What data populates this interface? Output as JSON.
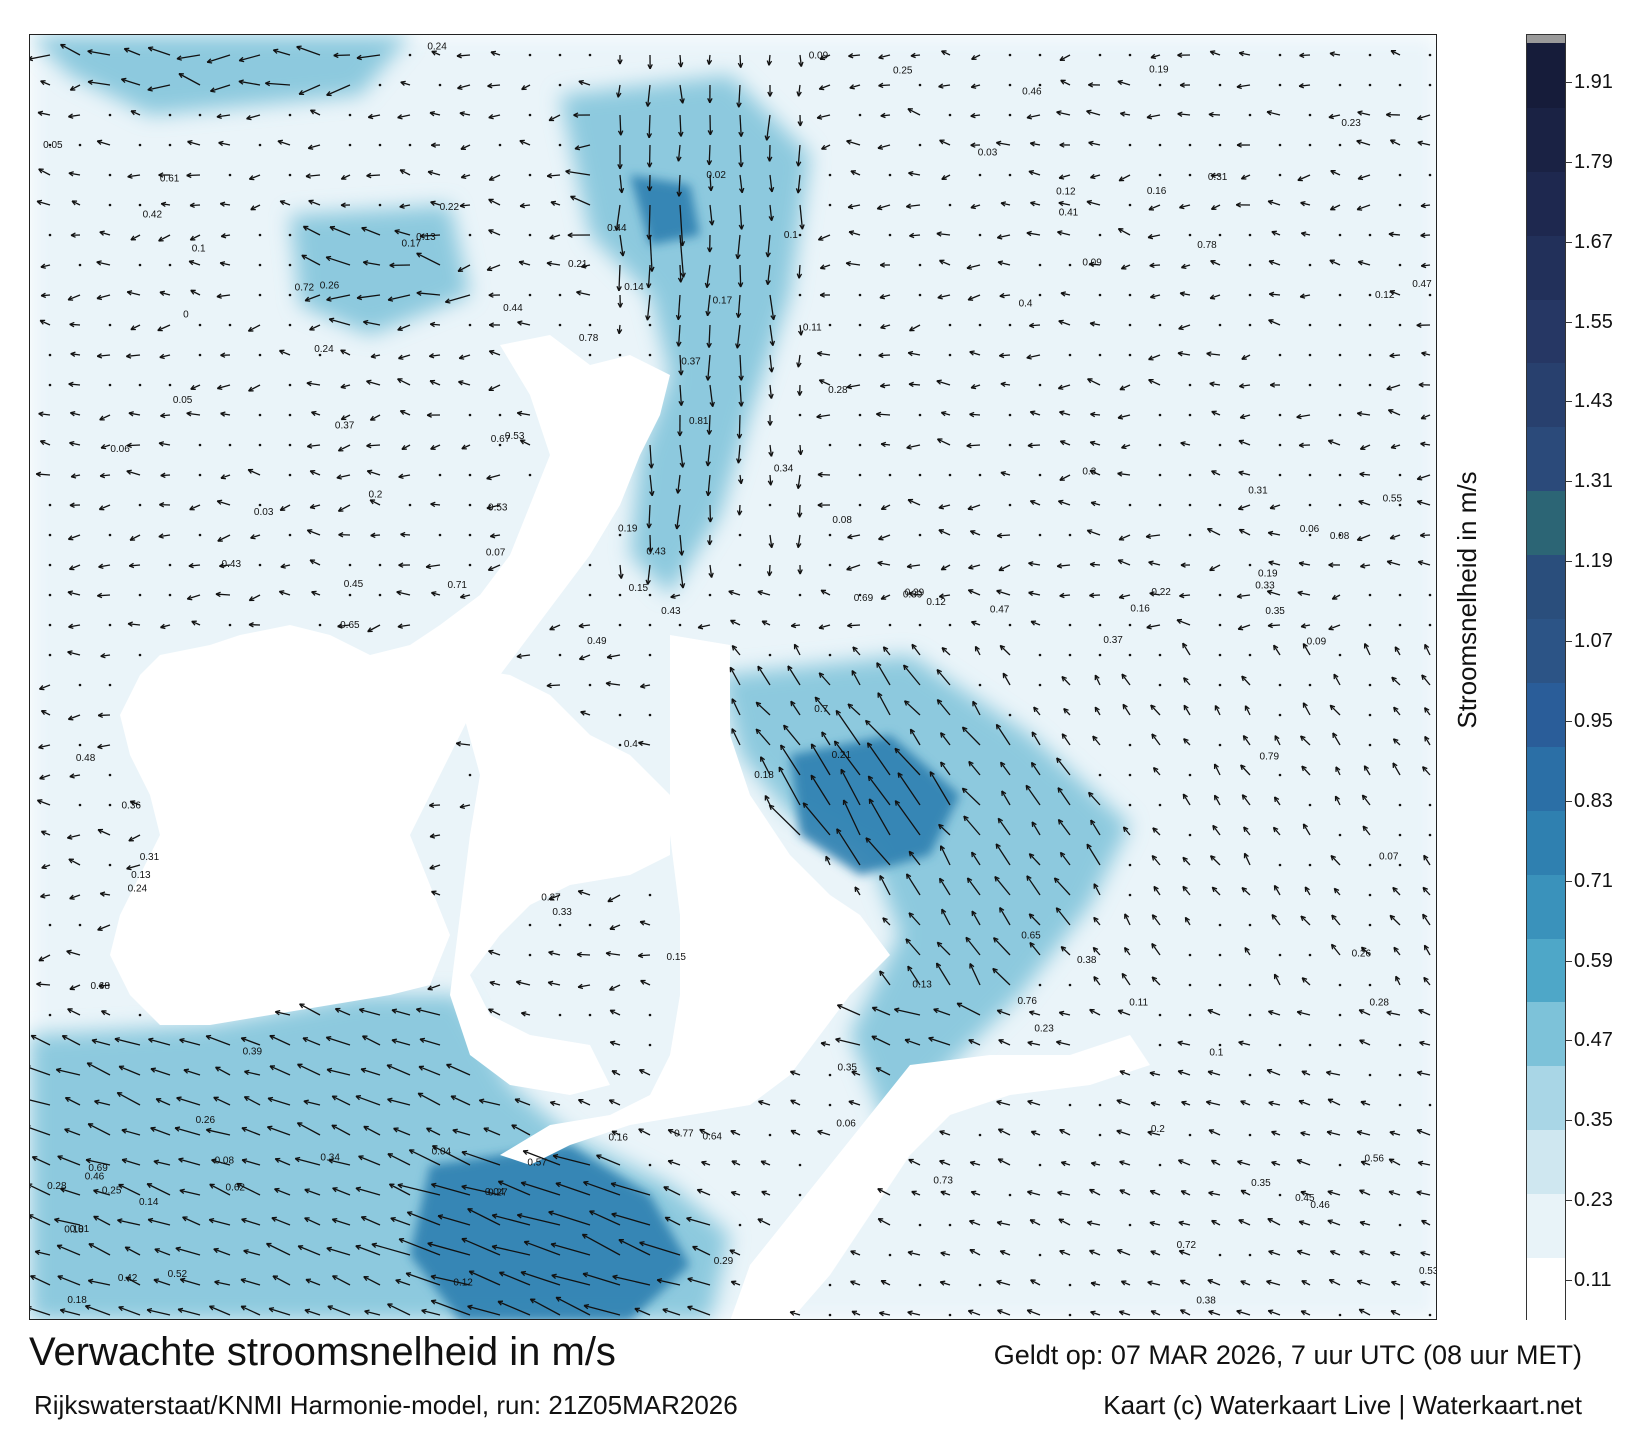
{
  "header": {
    "title": "Verwachte stroomsnelheid in m/s",
    "subtitle": "Rijkswaterstaat/KNMI Harmonie-model, run: 21Z05MAR2026",
    "valid_time": "Geldt op: 07 MAR 2026, 7 uur UTC (08 uur MET)",
    "credit": "Kaart (c) Waterkaart Live | Waterkaart.net"
  },
  "colorbar": {
    "label": "Stroomsnelheid in m/s",
    "ticks": [
      "0.11",
      "0.23",
      "0.35",
      "0.47",
      "0.59",
      "0.71",
      "0.83",
      "0.95",
      "1.07",
      "1.19",
      "1.31",
      "1.43",
      "1.55",
      "1.67",
      "1.79",
      "1.91"
    ],
    "min": 0.05,
    "max": 1.97,
    "colors": [
      "#ffffff",
      "#e8f3f8",
      "#cfe7f0",
      "#a9d6e6",
      "#7dc2d9",
      "#4ea7c8",
      "#3a92bb",
      "#2f80b0",
      "#2b6fa6",
      "#2a5d99",
      "#2c5486",
      "#2a4e7c",
      "#2c6575",
      "#2b4a7a",
      "#28406e",
      "#263764",
      "#22305a",
      "#1e284f",
      "#1a2244",
      "#161c3a"
    ]
  },
  "map": {
    "max_speed": 1.97,
    "regions": [
      {
        "speed": 0.15,
        "opacity": 0.9
      },
      {
        "speed": 0.45,
        "opacity": 0.85
      },
      {
        "speed": 0.75,
        "opacity": 0.9
      }
    ],
    "labels": [
      {
        "v": "0.13"
      },
      {
        "v": "0.06"
      },
      {
        "v": "0.13"
      },
      {
        "v": "0.12"
      },
      {
        "v": "0.09"
      },
      {
        "v": "0.1"
      },
      {
        "v": "0.07"
      },
      {
        "v": "0.05"
      },
      {
        "v": "0.04"
      },
      {
        "v": "0.19"
      },
      {
        "v": "0.14"
      },
      {
        "v": "0.13"
      },
      {
        "v": "0.08"
      },
      {
        "v": "0.12"
      },
      {
        "v": "0.11"
      },
      {
        "v": "0.17"
      },
      {
        "v": "0.18"
      },
      {
        "v": "0.38"
      },
      {
        "v": "0.47"
      },
      {
        "v": "0.53"
      },
      {
        "v": "0.45"
      },
      {
        "v": "0.35"
      },
      {
        "v": "0.28"
      },
      {
        "v": "0.29"
      },
      {
        "v": "0.4"
      },
      {
        "v": "0.25"
      },
      {
        "v": "0.22"
      },
      {
        "v": "0.24"
      },
      {
        "v": "0.26"
      },
      {
        "v": "0.27"
      },
      {
        "v": "0.23"
      },
      {
        "v": "0.21"
      },
      {
        "v": "0.15"
      },
      {
        "v": "0.16"
      },
      {
        "v": "0.1"
      },
      {
        "v": "0.08"
      },
      {
        "v": "0.37"
      },
      {
        "v": "0.36"
      },
      {
        "v": "0.33"
      },
      {
        "v": "0.39"
      },
      {
        "v": "0.49"
      },
      {
        "v": "0.43"
      },
      {
        "v": "0.31"
      },
      {
        "v": "0.2"
      },
      {
        "v": "0.19"
      },
      {
        "v": "0.02"
      },
      {
        "v": "0.03"
      },
      {
        "v": "0.06"
      },
      {
        "v": "0.12"
      },
      {
        "v": "0.14"
      },
      {
        "v": "0.16"
      },
      {
        "v": "0.18"
      },
      {
        "v": "0.09"
      },
      {
        "v": "0.1"
      },
      {
        "v": "0.37"
      },
      {
        "v": "0.46"
      },
      {
        "v": "0.43"
      },
      {
        "v": "0.53"
      },
      {
        "v": "0.56"
      },
      {
        "v": "0.64"
      },
      {
        "v": "0.68"
      },
      {
        "v": "0.78"
      },
      {
        "v": "0.77"
      },
      {
        "v": "0.7"
      },
      {
        "v": "0.65"
      },
      {
        "v": "0.69"
      },
      {
        "v": "0.72"
      },
      {
        "v": "0.48"
      },
      {
        "v": "0.41"
      },
      {
        "v": "0.34"
      },
      {
        "v": "0.28"
      },
      {
        "v": "0.25"
      },
      {
        "v": "0.44"
      },
      {
        "v": "0.45"
      },
      {
        "v": "0.42"
      },
      {
        "v": "0.35"
      },
      {
        "v": "0.31"
      },
      {
        "v": "0.26"
      },
      {
        "v": "0.3"
      },
      {
        "v": "0.24"
      },
      {
        "v": "0.22"
      },
      {
        "v": "0.29"
      },
      {
        "v": "0.27"
      },
      {
        "v": "0.31"
      },
      {
        "v": "0.34"
      },
      {
        "v": "0.37"
      },
      {
        "v": "0.39"
      },
      {
        "v": "0.42"
      },
      {
        "v": "0.46"
      },
      {
        "v": "0.44"
      },
      {
        "v": "0.52"
      },
      {
        "v": "0.55"
      },
      {
        "v": "0.61"
      },
      {
        "v": "0.65"
      },
      {
        "v": "0.69"
      },
      {
        "v": "0.72"
      },
      {
        "v": "0.76"
      },
      {
        "v": "0.71"
      },
      {
        "v": "0.73"
      },
      {
        "v": "0.78"
      },
      {
        "v": "0.79"
      },
      {
        "v": "0.81"
      },
      {
        "v": "0.67"
      },
      {
        "v": "0.62"
      },
      {
        "v": "0.57"
      },
      {
        "v": "0.53"
      },
      {
        "v": "0.47"
      },
      {
        "v": "0.46"
      },
      {
        "v": "0.35"
      },
      {
        "v": "0.33"
      },
      {
        "v": "0.38"
      },
      {
        "v": "0.4"
      },
      {
        "v": "0.43"
      },
      {
        "v": "0.26"
      },
      {
        "v": "0.24"
      },
      {
        "v": "0.21"
      },
      {
        "v": "0.19"
      },
      {
        "v": "0.28"
      },
      {
        "v": "0.23"
      },
      {
        "v": "0.15"
      },
      {
        "v": "0.16"
      },
      {
        "v": "0.18"
      },
      {
        "v": "0.2"
      },
      {
        "v": "0.17"
      },
      {
        "v": "0.12"
      },
      {
        "v": "0.11"
      },
      {
        "v": "0.04"
      },
      {
        "v": "0.05"
      },
      {
        "v": "0.06"
      },
      {
        "v": "0.07"
      },
      {
        "v": "0.08"
      },
      {
        "v": "0.09"
      },
      {
        "v": "0.01"
      },
      {
        "v": "0.03"
      },
      {
        "v": "0"
      }
    ]
  }
}
